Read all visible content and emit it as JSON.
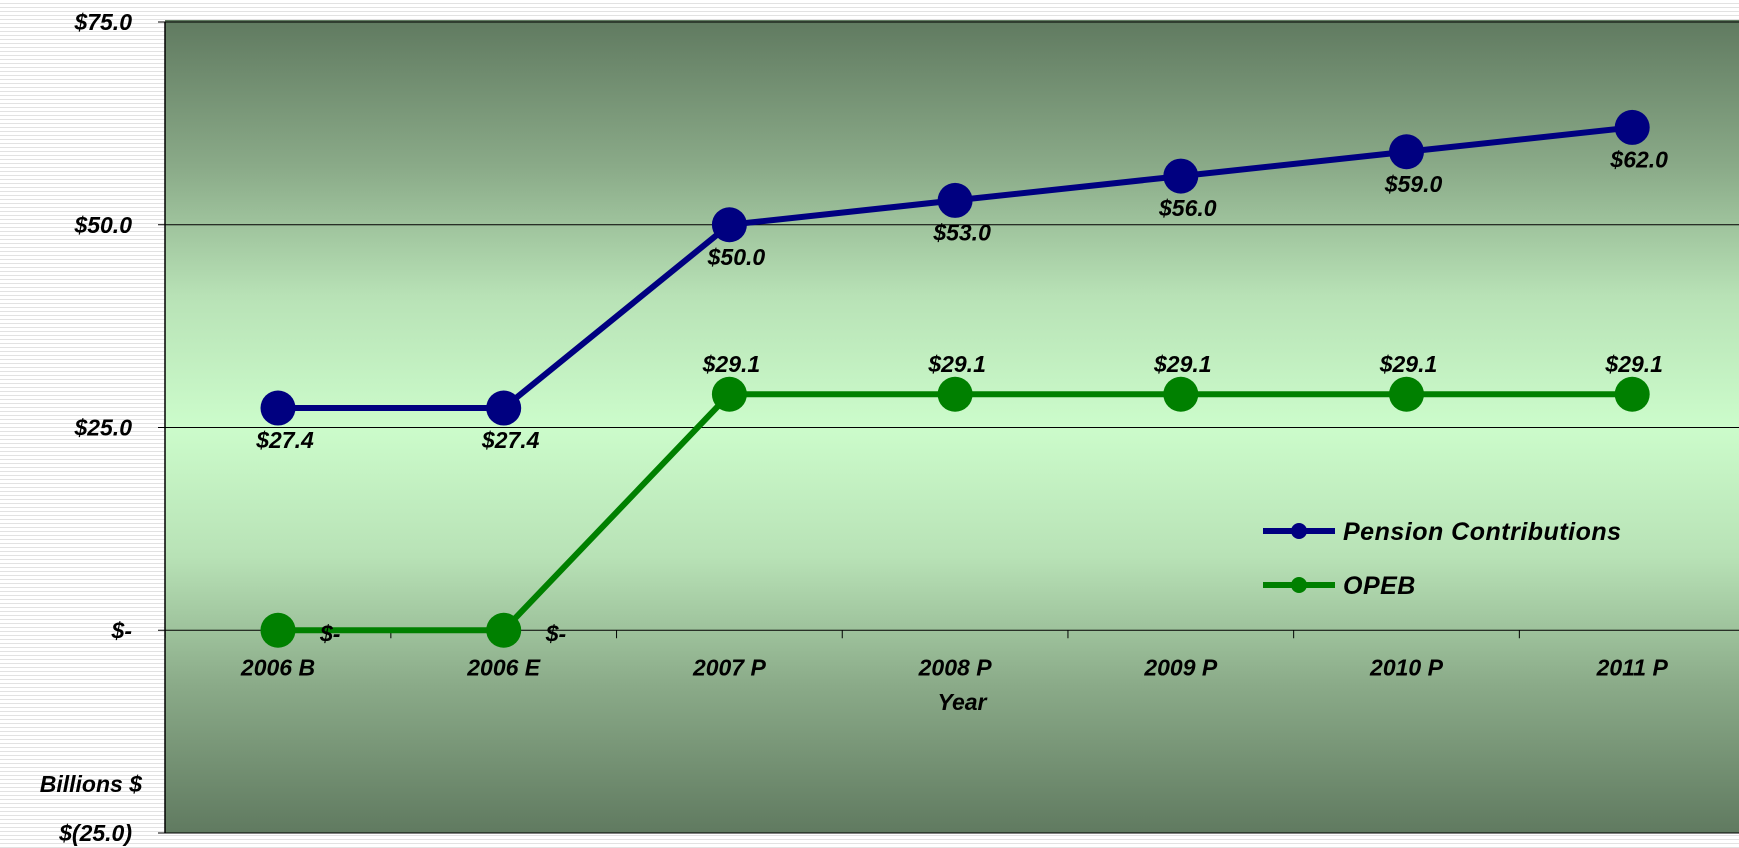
{
  "chart_data": {
    "type": "line",
    "title": "",
    "xlabel": "Year",
    "ylabel": "Billions $",
    "categories": [
      "2006 B",
      "2006 E",
      "2007 P",
      "2008 P",
      "2009 P",
      "2010 P",
      "2011 P"
    ],
    "ylim": [
      -25,
      75
    ],
    "yticks": [
      -25,
      0,
      25,
      50,
      75
    ],
    "ytick_labels": [
      "$(25.0)",
      "$-",
      "$25.0",
      "$50.0",
      "$75.0"
    ],
    "grid": true,
    "legend_position": "right",
    "series": [
      {
        "name": "Pension Contributions",
        "color": "#000080",
        "values": [
          27.4,
          27.4,
          50.0,
          53.0,
          56.0,
          59.0,
          62.0
        ],
        "labels": [
          "$27.4",
          "$27.4",
          "$50.0",
          "$53.0",
          "$56.0",
          "$59.0",
          "$62.0"
        ]
      },
      {
        "name": "OPEB",
        "color": "#008000",
        "values": [
          0,
          0,
          29.1,
          29.1,
          29.1,
          29.1,
          29.1
        ],
        "labels": [
          "$-",
          "$-",
          "$29.1",
          "$29.1",
          "$29.1",
          "$29.1",
          "$29.1"
        ]
      }
    ]
  }
}
